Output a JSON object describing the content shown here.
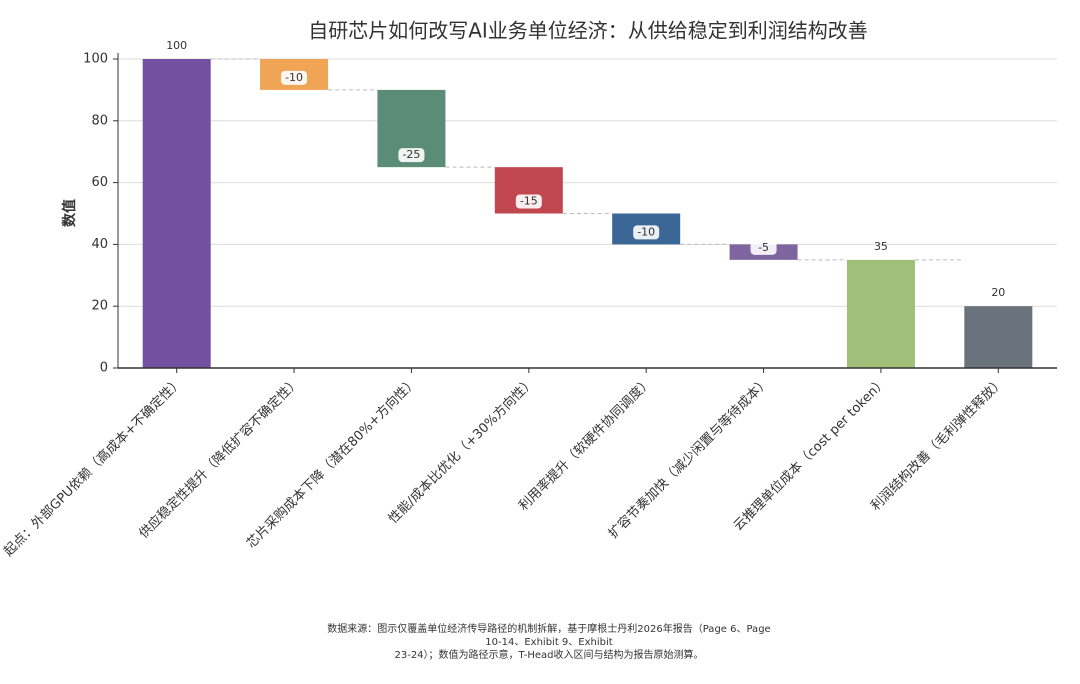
{
  "chart_data": {
    "type": "waterfall",
    "title": "自研芯片如何改写AI业务单位经济：从供给稳定到利润结构改善",
    "y_label": "数值",
    "categories": [
      "起点：外部GPU依赖（高成本+不确定性）",
      "供应稳定性提升（降低扩容不确定性）",
      "芯片采购成本下降（潜在80%+方向性）",
      "性能/成本比优化（+30%方向性）",
      "利用率提升（软硬件协同调度）",
      "扩容节奏加快（减少闲置与等待成本）",
      "云推理单位成本（cost per token）",
      "利润结构改善（毛利弹性释放）"
    ],
    "values": [
      100,
      -10,
      -25,
      -15,
      -10,
      -5,
      35,
      20
    ],
    "measure": [
      "absolute",
      "relative",
      "relative",
      "relative",
      "relative",
      "relative",
      "total",
      "absolute"
    ],
    "colors": [
      "#7351a0",
      "#f0a556",
      "#5a8c78",
      "#c0464f",
      "#3a6796",
      "#7f65a0",
      "#a0c07a",
      "#6a737c"
    ],
    "ylim": [
      0,
      100
    ],
    "yticks": [
      0,
      20,
      40,
      60,
      80,
      100
    ],
    "grid": true,
    "footnote": [
      "数据来源：图示仅覆盖单位经济传导路径的机制拆解，基于摩根士丹利2026年报告（Page 6、Page",
      "10-14、Exhibit 9、Exhibit",
      "23-24）；数值为路径示意，T-Head收入区间与结构为报告原始测算。"
    ]
  }
}
